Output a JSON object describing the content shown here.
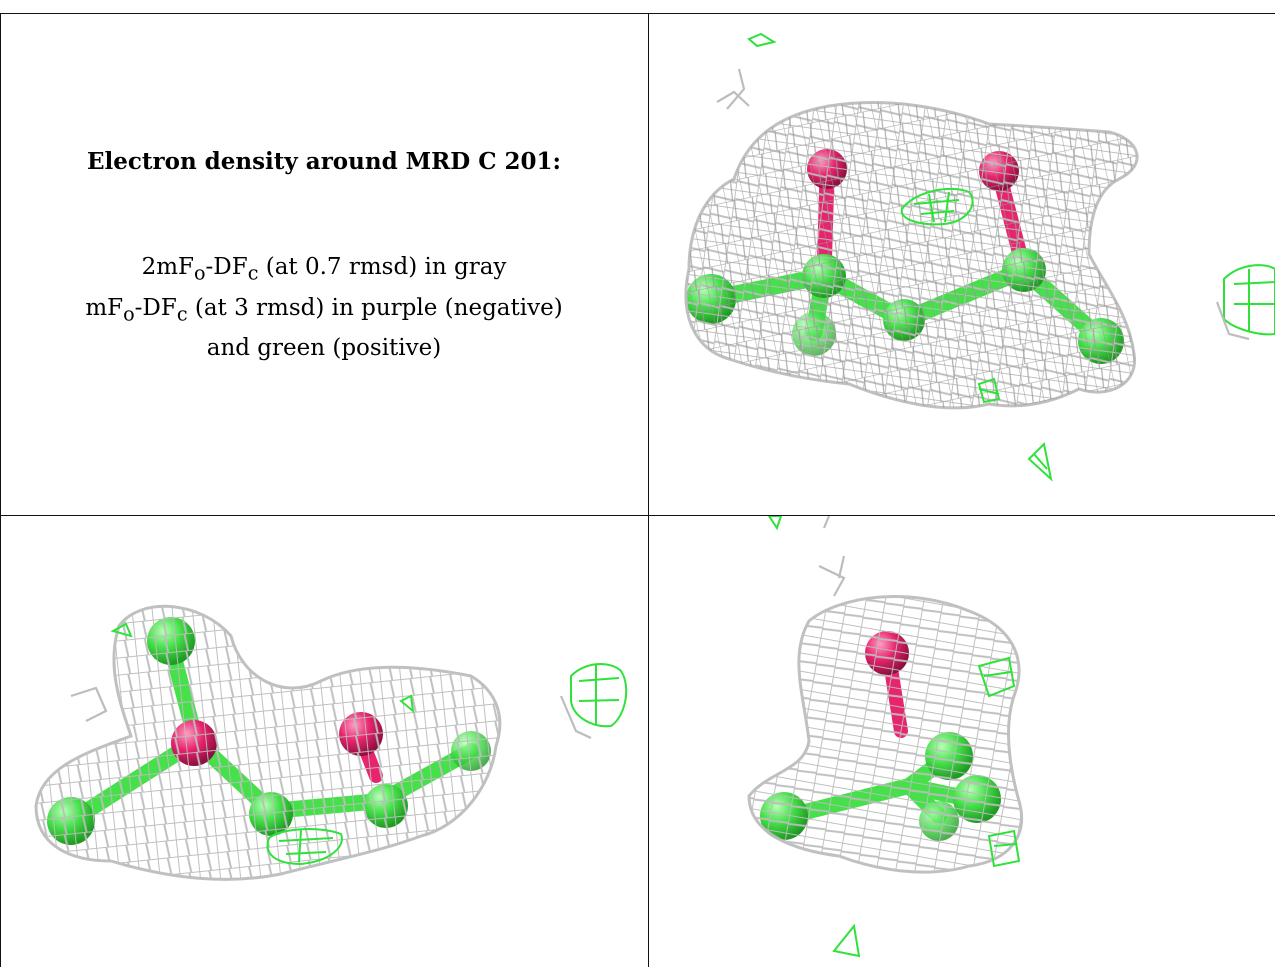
{
  "panel_text": {
    "title": "Electron density around MRD C 201:",
    "line1": "2mF",
    "line1_sub": "o",
    "line1_mid": "-DF",
    "line1_sub2": "c",
    "line1_end": " (at 0.7 rmsd) in gray",
    "line2": "mF",
    "line2_sub": "o",
    "line2_mid": "-DF",
    "line2_sub2": "c",
    "line2_end": " (at 3 rmsd) in purple (negative)",
    "line3": "and green (positive)"
  },
  "colors": {
    "gray_mesh": "#bdbdbd",
    "green_mesh": "#2fe23a",
    "carbon": "#45e04a",
    "oxygen": "#e8246e"
  }
}
